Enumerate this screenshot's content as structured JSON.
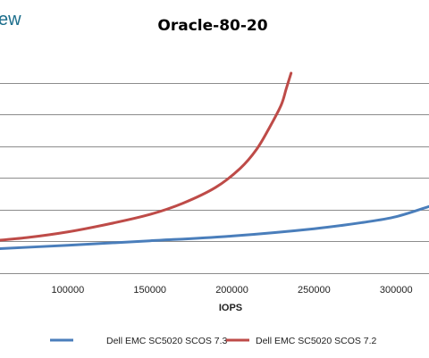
{
  "watermark": "ew",
  "chart_data": {
    "type": "line",
    "title": "Oracle-80-20",
    "xlabel": "IOPS",
    "ylabel": "",
    "xlim": [
      50000,
      320000
    ],
    "ylim": [
      0,
      7
    ],
    "grid": true,
    "x_tick_values": [
      100000,
      150000,
      200000,
      250000,
      300000
    ],
    "x_tick_labels": [
      "100000",
      "150000",
      "200000",
      "250000",
      "300000"
    ],
    "y_gridlines": [
      1,
      2,
      3,
      4,
      5,
      6
    ],
    "legend_position": "bottom",
    "series": [
      {
        "name": "Dell EMC SC5020 SCOS 7.3",
        "color": "#4a7ebb",
        "points": [
          [
            50000,
            0.75
          ],
          [
            100000,
            0.88
          ],
          [
            150000,
            1.02
          ],
          [
            200000,
            1.17
          ],
          [
            250000,
            1.4
          ],
          [
            280000,
            1.6
          ],
          [
            300000,
            1.78
          ],
          [
            320000,
            2.1
          ]
        ]
      },
      {
        "name": "Dell EMC SC5020 SCOS 7.2",
        "color": "#be4b48",
        "points": [
          [
            50000,
            1.0
          ],
          [
            75000,
            1.12
          ],
          [
            100000,
            1.3
          ],
          [
            125000,
            1.55
          ],
          [
            150000,
            1.85
          ],
          [
            170000,
            2.2
          ],
          [
            190000,
            2.7
          ],
          [
            205000,
            3.3
          ],
          [
            215000,
            3.9
          ],
          [
            223000,
            4.6
          ],
          [
            230000,
            5.3
          ],
          [
            233000,
            5.8
          ],
          [
            236000,
            6.3
          ]
        ]
      }
    ]
  }
}
